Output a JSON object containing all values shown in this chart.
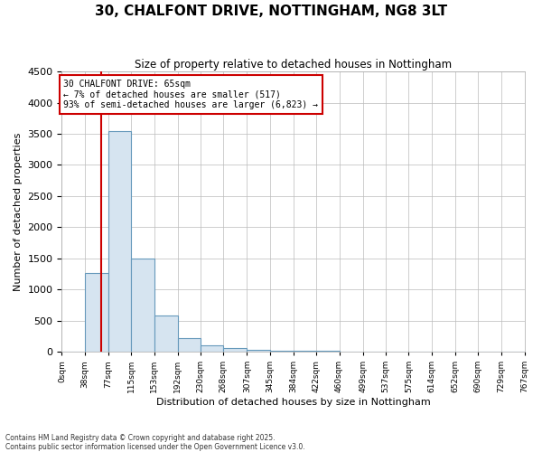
{
  "title": "30, CHALFONT DRIVE, NOTTINGHAM, NG8 3LT",
  "subtitle": "Size of property relative to detached houses in Nottingham",
  "xlabel": "Distribution of detached houses by size in Nottingham",
  "ylabel": "Number of detached properties",
  "annotation_line1": "30 CHALFONT DRIVE: 65sqm",
  "annotation_line2": "← 7% of detached houses are smaller (517)",
  "annotation_line3": "93% of semi-detached houses are larger (6,823) →",
  "property_size": 65,
  "x_tick_labels": [
    "0sqm",
    "38sqm",
    "77sqm",
    "115sqm",
    "153sqm",
    "192sqm",
    "230sqm",
    "268sqm",
    "307sqm",
    "345sqm",
    "384sqm",
    "422sqm",
    "460sqm",
    "499sqm",
    "537sqm",
    "575sqm",
    "614sqm",
    "652sqm",
    "690sqm",
    "729sqm",
    "767sqm"
  ],
  "x_tick_values": [
    0,
    38,
    77,
    115,
    153,
    192,
    230,
    268,
    307,
    345,
    384,
    422,
    460,
    499,
    537,
    575,
    614,
    652,
    690,
    729,
    767
  ],
  "bar_left_edges": [
    0,
    38,
    77,
    115,
    153,
    192,
    230,
    268,
    307,
    345,
    384,
    422,
    460,
    499,
    537,
    575,
    614,
    652,
    690,
    729
  ],
  "bar_widths": [
    38,
    39,
    38,
    38,
    39,
    38,
    38,
    39,
    38,
    39,
    38,
    38,
    39,
    38,
    38,
    39,
    38,
    38,
    39,
    38
  ],
  "bar_values": [
    0,
    1260,
    3550,
    1490,
    580,
    220,
    100,
    55,
    30,
    18,
    10,
    8,
    5,
    3,
    2,
    1,
    0,
    0,
    0,
    0
  ],
  "bar_color": "#d6e4f0",
  "bar_edgecolor": "#6699bb",
  "red_line_x": 65,
  "annotation_box_facecolor": "#ffffff",
  "annotation_box_edgecolor": "#cc0000",
  "grid_color": "#bbbbbb",
  "background_color": "#ffffff",
  "ylim": [
    0,
    4500
  ],
  "yticks": [
    0,
    500,
    1000,
    1500,
    2000,
    2500,
    3000,
    3500,
    4000,
    4500
  ],
  "footnote1": "Contains HM Land Registry data © Crown copyright and database right 2025.",
  "footnote2": "Contains public sector information licensed under the Open Government Licence v3.0."
}
